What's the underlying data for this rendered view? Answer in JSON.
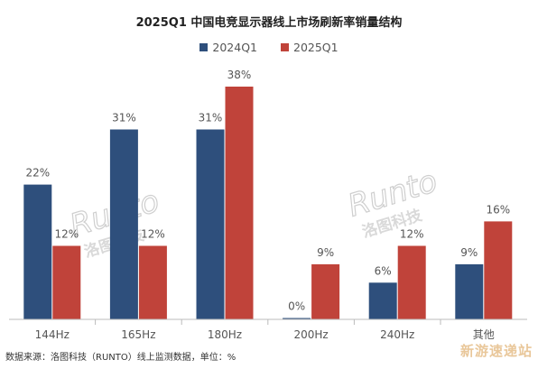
{
  "chart_data": {
    "type": "bar",
    "title": "2025Q1 中国电竞显示器线上市场刷新率销量结构",
    "categories": [
      "144Hz",
      "165Hz",
      "180Hz",
      "200Hz",
      "240Hz",
      "其他"
    ],
    "series": [
      {
        "name": "2024Q1",
        "values": [
          22,
          31,
          31,
          0,
          6,
          9
        ],
        "labels": [
          "22%",
          "31%",
          "31%",
          "0%",
          "6%",
          "9%"
        ],
        "color": "#2e4f7c"
      },
      {
        "name": "2025Q1",
        "values": [
          12,
          12,
          38,
          9,
          12,
          16
        ],
        "labels": [
          "12%",
          "12%",
          "38%",
          "9%",
          "12%",
          "16%"
        ],
        "color": "#c0433a"
      }
    ],
    "ylim": [
      0,
      40
    ],
    "grid": false,
    "legend_position": "top-center",
    "xlabel": "",
    "ylabel": ""
  },
  "source_note": "数据来源：洛图科技（RUNTO）线上监测数据，单位：%",
  "watermarks": {
    "brand_en": "Runto",
    "brand_cn": "洛图科技",
    "site": "新游速递站"
  },
  "colors": {
    "axis": "#bbbbbb",
    "label": "#555555",
    "watermark": "#d6d6d6"
  }
}
